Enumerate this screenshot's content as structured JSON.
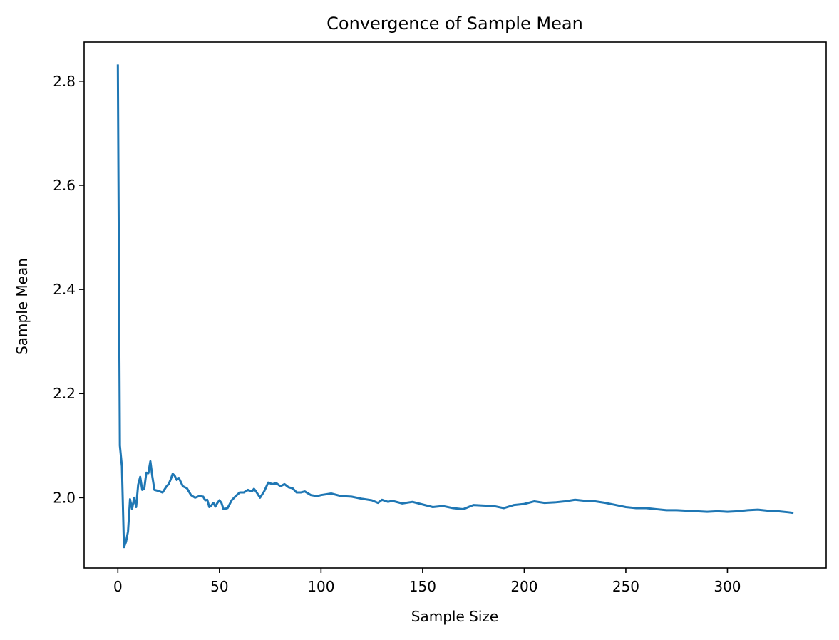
{
  "chart_data": {
    "type": "line",
    "title": "Convergence of Sample Mean",
    "xlabel": "Sample Size",
    "ylabel": "Sample Mean",
    "xlim": [
      -16.6,
      348.6
    ],
    "ylim": [
      1.865,
      2.875
    ],
    "xticks": [
      0,
      50,
      100,
      150,
      200,
      250,
      300
    ],
    "yticks": [
      2.0,
      2.2,
      2.4,
      2.6,
      2.8
    ],
    "ytick_labels": [
      "2.0",
      "2.2",
      "2.4",
      "2.6",
      "2.8"
    ],
    "grid": false,
    "legend": "none",
    "line_color": "#1f77b4",
    "series": [
      {
        "x": [
          0,
          1,
          2,
          3,
          4,
          5,
          6,
          7,
          8,
          9,
          10,
          11,
          12,
          13,
          14,
          15,
          16,
          17,
          18,
          20,
          22,
          24,
          25,
          26,
          27,
          28,
          29,
          30,
          31,
          32,
          34,
          36,
          38,
          40,
          42,
          43,
          44,
          45,
          46,
          47,
          48,
          49,
          50,
          51,
          52,
          54,
          56,
          58,
          60,
          62,
          64,
          66,
          67,
          68,
          69,
          70,
          72,
          74,
          76,
          78,
          80,
          82,
          84,
          86,
          88,
          90,
          92,
          95,
          98,
          100,
          105,
          110,
          115,
          120,
          125,
          128,
          130,
          133,
          135,
          140,
          145,
          150,
          155,
          160,
          165,
          170,
          175,
          180,
          185,
          190,
          195,
          200,
          205,
          210,
          215,
          220,
          225,
          230,
          235,
          240,
          245,
          250,
          255,
          260,
          265,
          270,
          275,
          280,
          285,
          290,
          295,
          300,
          305,
          310,
          315,
          320,
          325,
          330,
          332
        ],
        "y": [
          2.83,
          2.1,
          2.06,
          1.905,
          1.915,
          1.935,
          1.997,
          1.978,
          2.0,
          1.982,
          2.025,
          2.04,
          2.015,
          2.017,
          2.048,
          2.047,
          2.07,
          2.04,
          2.015,
          2.013,
          2.01,
          2.022,
          2.026,
          2.035,
          2.046,
          2.042,
          2.034,
          2.038,
          2.03,
          2.022,
          2.018,
          2.005,
          2.0,
          2.003,
          2.002,
          1.995,
          1.996,
          1.982,
          1.985,
          1.99,
          1.983,
          1.99,
          1.995,
          1.99,
          1.978,
          1.98,
          1.995,
          2.003,
          2.01,
          2.01,
          2.015,
          2.012,
          2.017,
          2.012,
          2.006,
          2.0,
          2.012,
          2.029,
          2.026,
          2.028,
          2.022,
          2.026,
          2.02,
          2.018,
          2.01,
          2.01,
          2.012,
          2.005,
          2.003,
          2.005,
          2.008,
          2.003,
          2.002,
          1.998,
          1.995,
          1.99,
          1.996,
          1.992,
          1.994,
          1.989,
          1.992,
          1.987,
          1.982,
          1.984,
          1.98,
          1.978,
          1.986,
          1.985,
          1.984,
          1.98,
          1.986,
          1.988,
          1.993,
          1.99,
          1.991,
          1.993,
          1.996,
          1.994,
          1.993,
          1.99,
          1.986,
          1.982,
          1.98,
          1.98,
          1.978,
          1.976,
          1.976,
          1.975,
          1.974,
          1.973,
          1.974,
          1.973,
          1.974,
          1.976,
          1.977,
          1.975,
          1.974,
          1.972,
          1.971
        ]
      }
    ]
  }
}
